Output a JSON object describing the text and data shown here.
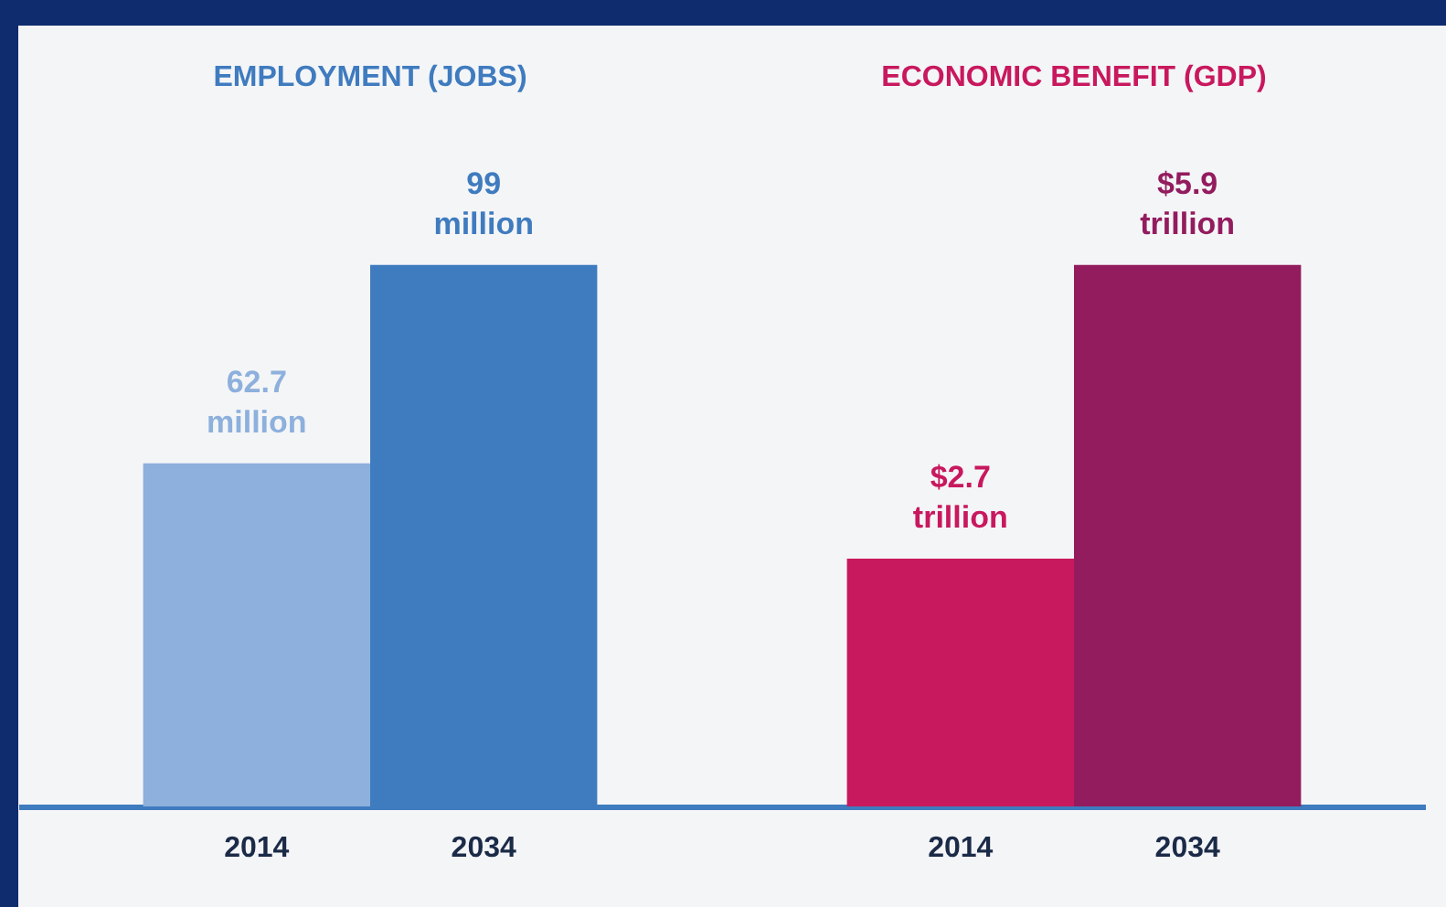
{
  "chart_data": [
    {
      "type": "bar",
      "title": "EMPLOYMENT (JOBS)",
      "categories": [
        "2014",
        "2034"
      ],
      "values": [
        62.7,
        99
      ],
      "colors": [
        "#8db0dc",
        "#3f7bbf"
      ],
      "value_labels": [
        "62.7 million",
        "99 million"
      ]
    },
    {
      "type": "bar",
      "title": "ECONOMIC BENEFIT (GDP)",
      "categories": [
        "2014",
        "2034"
      ],
      "values": [
        2.7,
        5.9
      ],
      "colors": [
        "#c8185e",
        "#931c5e"
      ],
      "value_labels": [
        "$2.7 trillion",
        "$5.9 trillion"
      ]
    }
  ]
}
